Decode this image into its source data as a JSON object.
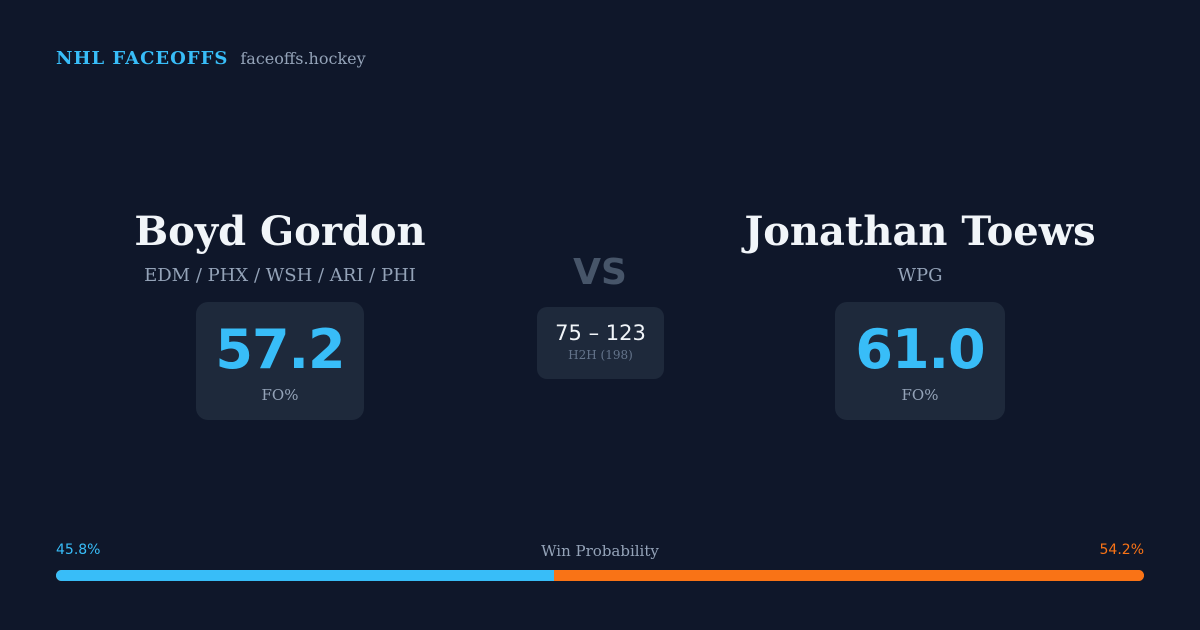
{
  "brand": {
    "name": "NHL FACEOFFS",
    "domain": "faceoffs.hockey"
  },
  "matchup": {
    "vs_label": "VS",
    "left": {
      "name": "Boyd Gordon",
      "teams": "EDM / PHX / WSH / ARI / PHI",
      "fo_pct": "57.2",
      "fo_label": "FO%"
    },
    "right": {
      "name": "Jonathan Toews",
      "teams": "WPG",
      "fo_pct": "61.0",
      "fo_label": "FO%"
    },
    "h2h": {
      "score": "75 – 123",
      "label": "H2H (198)"
    }
  },
  "win_probability": {
    "title": "Win Probability",
    "left_pct_label": "45.8%",
    "right_pct_label": "54.2%",
    "left_value": 45.8,
    "right_value": 54.2,
    "left_color": "#38bdf8",
    "right_color": "#f97316"
  }
}
